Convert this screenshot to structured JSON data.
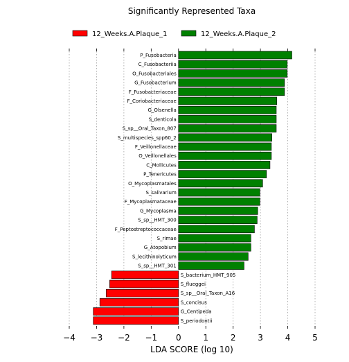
{
  "chart_data": {
    "type": "bar",
    "orientation": "horizontal",
    "title": "Significantly Represented Taxa",
    "xlabel": "LDA SCORE (log 10)",
    "ylabel": "",
    "xlim": [
      -4,
      5
    ],
    "xticks": [
      -4,
      -3,
      -2,
      -1,
      0,
      1,
      2,
      3,
      4,
      5
    ],
    "grid": true,
    "legend_position": "top",
    "series": [
      {
        "name": "12_Weeks.A.Plaque_1",
        "color": "#ff0000"
      },
      {
        "name": "12_Weeks.A.Plaque_2",
        "color": "#008000"
      }
    ],
    "bars": [
      {
        "label": "P_Fusobacteria",
        "value": 4.15,
        "group": 1
      },
      {
        "label": "C_Fusobacteriia",
        "value": 3.98,
        "group": 1
      },
      {
        "label": "O_Fusobacteriales",
        "value": 3.98,
        "group": 1
      },
      {
        "label": "G_Fusobacterium",
        "value": 3.88,
        "group": 1
      },
      {
        "label": "F_Fusobacteriaceae",
        "value": 3.88,
        "group": 1
      },
      {
        "label": "F_Coriobacteriaceae",
        "value": 3.6,
        "group": 1
      },
      {
        "label": "G_Olsenella",
        "value": 3.58,
        "group": 1
      },
      {
        "label": "S_denticola",
        "value": 3.58,
        "group": 1
      },
      {
        "label": "S_sp__Oral_Taxon_807",
        "value": 3.58,
        "group": 1
      },
      {
        "label": "S_multispecies_spp60_2",
        "value": 3.42,
        "group": 1
      },
      {
        "label": "F_Veillonellaceae",
        "value": 3.4,
        "group": 1
      },
      {
        "label": "O_Veillonellales",
        "value": 3.4,
        "group": 1
      },
      {
        "label": "C_Mollicutes",
        "value": 3.35,
        "group": 1
      },
      {
        "label": "P_Tenericutes",
        "value": 3.22,
        "group": 1
      },
      {
        "label": "O_Mycoplasmatales",
        "value": 3.08,
        "group": 1
      },
      {
        "label": "S_salivarium",
        "value": 2.98,
        "group": 1
      },
      {
        "label": "F_Mycoplasmataceae",
        "value": 2.98,
        "group": 1
      },
      {
        "label": "G_Mycoplasma",
        "value": 2.9,
        "group": 1
      },
      {
        "label": "S_sp__HMT_300",
        "value": 2.88,
        "group": 1
      },
      {
        "label": "F_Peptostreptococcaceae",
        "value": 2.78,
        "group": 1
      },
      {
        "label": "S_rimae",
        "value": 2.65,
        "group": 1
      },
      {
        "label": "G_Atopobium",
        "value": 2.65,
        "group": 1
      },
      {
        "label": "S_lecithinolyticum",
        "value": 2.55,
        "group": 1
      },
      {
        "label": "S_sp__HMT_301",
        "value": 2.4,
        "group": 1
      },
      {
        "label": "S_bacterium_HMT_905",
        "value": -2.45,
        "group": 0
      },
      {
        "label": "S_flueggei",
        "value": -2.52,
        "group": 0
      },
      {
        "label": "S_sp__Oral_Taxon_A16",
        "value": -2.65,
        "group": 0
      },
      {
        "label": "S_concisus",
        "value": -2.88,
        "group": 0
      },
      {
        "label": "G_Centipeda",
        "value": -3.12,
        "group": 0
      },
      {
        "label": "S_periodontii",
        "value": -3.12,
        "group": 0
      }
    ]
  }
}
